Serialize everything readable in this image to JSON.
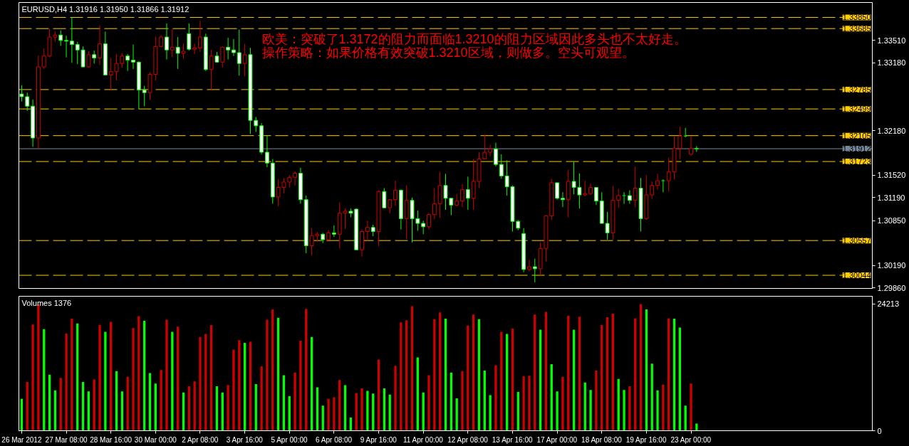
{
  "chart_data": [
    {
      "type": "candlestick",
      "title": "EURUSD,H4 1.31916 1.31950 1.31866 1.31912",
      "categories": [
        null,
        null,
        null,
        null,
        null,
        null,
        null,
        null,
        null,
        null,
        null,
        null,
        null,
        null,
        null,
        null,
        null,
        null,
        null,
        null,
        null,
        null,
        null,
        null,
        null,
        null,
        null,
        null,
        null,
        null,
        null,
        null,
        null,
        null,
        null,
        null,
        null,
        null,
        null,
        null,
        null,
        null,
        null,
        null,
        null,
        null,
        null,
        null,
        null,
        null,
        null,
        null,
        null,
        null,
        null,
        null,
        null,
        null,
        null,
        null,
        null,
        null,
        null,
        null,
        null,
        null,
        null,
        null,
        null,
        null,
        null,
        null,
        null,
        null,
        null,
        null,
        null,
        null,
        null,
        null,
        null,
        null,
        null,
        null,
        null,
        null,
        null,
        null,
        null,
        null,
        null,
        null,
        null,
        null,
        null,
        null,
        null,
        null,
        null,
        null,
        null,
        null,
        null,
        null,
        null,
        null,
        null,
        null,
        null,
        null,
        null,
        null,
        null,
        null,
        null,
        null,
        null,
        null,
        null,
        null,
        null,
        null,
        null,
        null,
        null,
        null,
        null,
        null,
        null,
        null,
        null,
        null,
        null,
        null,
        null,
        null,
        null,
        null,
        null,
        null,
        null,
        null,
        null,
        null,
        null,
        null,
        null,
        null,
        null,
        null,
        null,
        null,
        null
      ],
      "ohlc": [
        [
          1.3272,
          1.3285,
          1.3261,
          1.3268
        ],
        [
          1.3268,
          1.3274,
          1.3247,
          1.3254
        ],
        [
          1.3254,
          1.3264,
          1.3194,
          1.3207
        ],
        [
          1.3207,
          1.3329,
          1.3191,
          1.3312
        ],
        [
          1.3312,
          1.3339,
          1.3309,
          1.3328
        ],
        [
          1.3328,
          1.3368,
          1.3326,
          1.3356
        ],
        [
          1.3356,
          1.3364,
          1.3349,
          1.3359
        ],
        [
          1.3359,
          1.3366,
          1.3343,
          1.3351
        ],
        [
          1.3351,
          1.3358,
          1.3326,
          1.335
        ],
        [
          1.335,
          1.3385,
          1.3318,
          1.3345
        ],
        [
          1.3345,
          1.3349,
          1.3316,
          1.3337
        ],
        [
          1.3337,
          1.3342,
          1.3311,
          1.3312
        ],
        [
          1.3312,
          1.3335,
          1.3311,
          1.333
        ],
        [
          1.333,
          1.3336,
          1.3317,
          1.3325
        ],
        [
          1.3325,
          1.3373,
          1.3315,
          1.3346
        ],
        [
          1.3346,
          1.3364,
          1.3299,
          1.33
        ],
        [
          1.33,
          1.3325,
          1.3277,
          1.3305
        ],
        [
          1.3305,
          1.3331,
          1.3292,
          1.3317
        ],
        [
          1.3317,
          1.3332,
          1.3311,
          1.3328
        ],
        [
          1.3328,
          1.3331,
          1.3306,
          1.3322
        ],
        [
          1.3322,
          1.3345,
          1.3309,
          1.3319
        ],
        [
          1.3319,
          1.332,
          1.325,
          1.3278
        ],
        [
          1.3278,
          1.3284,
          1.3254,
          1.3274
        ],
        [
          1.3274,
          1.3304,
          1.3263,
          1.3301
        ],
        [
          1.3301,
          1.3357,
          1.3292,
          1.3342
        ],
        [
          1.3342,
          1.3359,
          1.3341,
          1.3356
        ],
        [
          1.3356,
          1.3376,
          1.3323,
          1.3337
        ],
        [
          1.3337,
          1.3368,
          1.3326,
          1.3341
        ],
        [
          1.3341,
          1.3356,
          1.3309,
          1.3332
        ],
        [
          1.3332,
          1.3346,
          1.3324,
          1.3335
        ],
        [
          1.3361,
          1.3376,
          1.3336,
          1.3338
        ],
        [
          1.3338,
          1.3346,
          1.3331,
          1.334
        ],
        [
          1.334,
          1.338,
          1.3334,
          1.3356
        ],
        [
          1.3356,
          1.3361,
          1.3306,
          1.3308
        ],
        [
          1.3308,
          1.3337,
          1.3278,
          1.3328
        ],
        [
          1.3328,
          1.3334,
          1.3318,
          1.3319
        ],
        [
          1.3319,
          1.3342,
          1.3311,
          1.3341
        ],
        [
          1.3341,
          1.3355,
          1.3323,
          1.3337
        ],
        [
          1.3337,
          1.3353,
          1.3328,
          1.3333
        ],
        [
          1.3333,
          1.3367,
          1.3299,
          1.3317
        ],
        [
          1.3317,
          1.3346,
          1.3298,
          1.333
        ],
        [
          1.333,
          1.334,
          1.3213,
          1.3233
        ],
        [
          1.3233,
          1.3238,
          1.3216,
          1.3225
        ],
        [
          1.3225,
          1.3229,
          1.3183,
          1.3186
        ],
        [
          1.3186,
          1.3211,
          1.3164,
          1.317
        ],
        [
          1.317,
          1.3176,
          1.311,
          1.312
        ],
        [
          1.312,
          1.3146,
          1.3106,
          1.3134
        ],
        [
          1.3134,
          1.3148,
          1.3126,
          1.3142
        ],
        [
          1.3142,
          1.3152,
          1.3134,
          1.3149
        ],
        [
          1.3149,
          1.3158,
          1.3137,
          1.3155
        ],
        [
          1.3155,
          1.3163,
          1.311,
          1.3116
        ],
        [
          1.3116,
          1.3122,
          1.3037,
          1.3048
        ],
        [
          1.3048,
          1.3074,
          1.3034,
          1.3063
        ],
        [
          1.3063,
          1.3068,
          1.3054,
          1.3065
        ],
        [
          1.3065,
          1.3067,
          1.3052,
          1.3057
        ],
        [
          1.3057,
          1.3071,
          1.3056,
          1.3067
        ],
        [
          1.3067,
          1.3078,
          1.3061,
          1.3065
        ],
        [
          1.3065,
          1.3112,
          1.3044,
          1.3096
        ],
        [
          1.3096,
          1.3103,
          1.3073,
          1.3099
        ],
        [
          1.3099,
          1.3103,
          1.309,
          1.3096
        ],
        [
          1.3102,
          1.3103,
          1.3042,
          1.3042
        ],
        [
          1.3042,
          1.3072,
          1.3032,
          1.3069
        ],
        [
          1.3069,
          1.3085,
          1.3055,
          1.3075
        ],
        [
          1.3075,
          1.3079,
          1.3062,
          1.3069
        ],
        [
          1.3069,
          1.313,
          1.3048,
          1.3128
        ],
        [
          1.3128,
          1.3133,
          1.3104,
          1.3104
        ],
        [
          1.3104,
          1.3117,
          1.3096,
          1.3116
        ],
        [
          1.3116,
          1.3144,
          1.3107,
          1.313
        ],
        [
          1.313,
          1.3131,
          1.3072,
          1.3088
        ],
        [
          1.3088,
          1.3137,
          1.3058,
          1.3115
        ],
        [
          1.3115,
          1.3119,
          1.3053,
          1.3088
        ],
        [
          1.3088,
          1.31,
          1.307,
          1.3081
        ],
        [
          1.3081,
          1.3085,
          1.3065,
          1.3076
        ],
        [
          1.3076,
          1.3096,
          1.3072,
          1.3094
        ],
        [
          1.3094,
          1.3133,
          1.3087,
          1.311
        ],
        [
          1.311,
          1.3157,
          1.3089,
          1.3137
        ],
        [
          1.3137,
          1.3154,
          1.3101,
          1.3118
        ],
        [
          1.3118,
          1.3118,
          1.3093,
          1.3108
        ],
        [
          1.3108,
          1.3124,
          1.3106,
          1.3114
        ],
        [
          1.3114,
          1.3139,
          1.3105,
          1.3131
        ],
        [
          1.3131,
          1.315,
          1.3101,
          1.3118
        ],
        [
          1.3118,
          1.3176,
          1.3101,
          1.3143
        ],
        [
          1.3143,
          1.3186,
          1.3133,
          1.3176
        ],
        [
          1.3176,
          1.3212,
          1.3176,
          1.3186
        ],
        [
          1.3186,
          1.3197,
          1.318,
          1.3191
        ],
        [
          1.3191,
          1.32,
          1.3165,
          1.3168
        ],
        [
          1.3168,
          1.3183,
          1.3147,
          1.3151
        ],
        [
          1.3151,
          1.3174,
          1.3122,
          1.3135
        ],
        [
          1.3135,
          1.3137,
          1.3069,
          1.3084
        ],
        [
          1.3084,
          1.3086,
          1.3071,
          1.3074
        ],
        [
          1.3066,
          1.3074,
          1.3009,
          1.3013
        ],
        [
          1.3013,
          1.3027,
          1.301,
          1.3017
        ],
        [
          1.3017,
          1.3029,
          1.2994,
          1.3014
        ],
        [
          1.3014,
          1.3053,
          1.3004,
          1.3044
        ],
        [
          1.3044,
          1.3092,
          1.3025,
          1.3092
        ],
        [
          1.3092,
          1.3147,
          1.3086,
          1.3141
        ],
        [
          1.3141,
          1.3141,
          1.3116,
          1.3118
        ],
        [
          1.3118,
          1.3127,
          1.3105,
          1.3116
        ],
        [
          1.3116,
          1.316,
          1.309,
          1.3143
        ],
        [
          1.3143,
          1.3172,
          1.3124,
          1.3134
        ],
        [
          1.3134,
          1.3155,
          1.3103,
          1.3123
        ],
        [
          1.3123,
          1.3144,
          1.3121,
          1.3125
        ],
        [
          1.3125,
          1.314,
          1.3123,
          1.3134
        ],
        [
          1.3134,
          1.3134,
          1.3108,
          1.3114
        ],
        [
          1.3114,
          1.3127,
          1.3081,
          1.3081
        ],
        [
          1.3081,
          1.3098,
          1.3057,
          1.3067
        ],
        [
          1.3067,
          1.3136,
          1.3057,
          1.3115
        ],
        [
          1.3115,
          1.3132,
          1.3104,
          1.3122
        ],
        [
          1.3122,
          1.3127,
          1.311,
          1.3122
        ],
        [
          1.3122,
          1.313,
          1.311,
          1.3115
        ],
        [
          1.3115,
          1.3165,
          1.3105,
          1.3133
        ],
        [
          1.3133,
          1.3148,
          1.3069,
          1.3088
        ],
        [
          1.3088,
          1.3152,
          1.3086,
          1.3123
        ],
        [
          1.3123,
          1.3143,
          1.3117,
          1.3137
        ],
        [
          1.3137,
          1.3154,
          1.3131,
          1.3144
        ],
        [
          1.3144,
          1.3146,
          1.3127,
          1.3144
        ],
        [
          1.3144,
          1.3178,
          1.3128,
          1.3157
        ],
        [
          1.3157,
          1.3209,
          1.3146,
          1.3192
        ],
        [
          1.3192,
          1.3224,
          1.3176,
          1.321
        ],
        [
          1.321,
          1.3222,
          1.3208,
          1.321
        ],
        [
          1.3183,
          1.321,
          1.3181,
          1.3192
        ],
        [
          1.31916,
          1.3195,
          1.31866,
          1.31912
        ],
        null,
        null,
        null,
        null,
        null,
        null,
        null,
        null,
        null,
        null,
        null,
        null,
        null,
        null,
        null,
        null,
        null,
        null,
        null,
        null,
        null,
        null,
        null,
        null,
        null,
        null,
        null,
        null,
        null,
        null,
        null
      ],
      "colors": [
        "#00ff00",
        "#00ff00",
        "#00ff00",
        "#d00000",
        "#d00000",
        "#d00000",
        "#d00000",
        "#00ff00",
        "#00ff00",
        "#00ff00",
        "#00ff00",
        "#00ff00",
        "#d00000",
        "#00ff00",
        "#d00000",
        "#00ff00",
        "#d00000",
        "#d00000",
        "#d00000",
        "#00ff00",
        "#00ff00",
        "#00ff00",
        "#00ff00",
        "#d00000",
        "#d00000",
        "#d00000",
        "#00ff00",
        "#d00000",
        "#00ff00",
        "#d00000",
        "#00ff00",
        "#d00000",
        "#d00000",
        "#00ff00",
        "#d00000",
        "#00ff00",
        "#d00000",
        "#00ff00",
        "#00ff00",
        "#00ff00",
        "#d00000",
        "#00ff00",
        "#00ff00",
        "#00ff00",
        "#00ff00",
        "#00ff00",
        "#d00000",
        "#d00000",
        "#d00000",
        "#d00000",
        "#00ff00",
        "#00ff00",
        "#d00000",
        "#d00000",
        "#00ff00",
        "#d00000",
        "#00ff00",
        "#d00000",
        "#d00000",
        "#00ff00",
        "#00ff00",
        "#d00000",
        "#d00000",
        "#00ff00",
        "#d00000",
        "#00ff00",
        "#d00000",
        "#d00000",
        "#00ff00",
        "#d00000",
        "#00ff00",
        "#00ff00",
        "#00ff00",
        "#d00000",
        "#d00000",
        "#d00000",
        "#00ff00",
        "#00ff00",
        "#d00000",
        "#d00000",
        "#00ff00",
        "#d00000",
        "#d00000",
        "#d00000",
        "#d00000",
        "#00ff00",
        "#00ff00",
        "#00ff00",
        "#00ff00",
        "#00ff00",
        "#00ff00",
        "#d00000",
        "#00ff00",
        "#d00000",
        "#d00000",
        "#d00000",
        "#00ff00",
        "#00ff00",
        "#d00000",
        "#00ff00",
        "#00ff00",
        "#d00000",
        "#d00000",
        "#00ff00",
        "#00ff00",
        "#00ff00",
        "#d00000",
        "#d00000",
        "#00ff00",
        "#00ff00",
        "#d00000",
        "#00ff00",
        "#d00000",
        "#d00000",
        "#d00000",
        "#00ff00",
        "#d00000",
        "#d00000",
        "#d00000",
        "#00ff00",
        "#d00000",
        "#00ff00",
        null,
        null,
        null,
        null,
        null,
        null,
        null,
        null,
        null,
        null,
        null,
        null,
        null,
        null,
        null,
        null,
        null,
        null,
        null,
        null,
        null,
        null,
        null,
        null,
        null,
        null,
        null,
        null,
        null,
        null,
        null
      ],
      "ylim": [
        1.2985,
        1.3407
      ],
      "yticks": [
        {
          "value": 1.3351,
          "label": "1.33510"
        },
        {
          "value": 1.3318,
          "label": "1.33180"
        },
        {
          "value": 1.3218,
          "label": "1.32180"
        },
        {
          "value": 1.3152,
          "label": "1.31520"
        },
        {
          "value": 1.3119,
          "label": "1.31190"
        },
        {
          "value": 1.3085,
          "label": "1.30850"
        },
        {
          "value": 1.3019,
          "label": "1.30190"
        },
        {
          "value": 1.2986,
          "label": "1.29860"
        }
      ],
      "tick_labels": "y",
      "ref_lines": [
        {
          "axis": "y",
          "value": 1.3385,
          "label": "1.33850",
          "color": "#ffcc00",
          "line_style": "dashed"
        },
        {
          "axis": "y",
          "value": 1.33685,
          "label": "1.33685",
          "color": "#ffcc00",
          "line_style": "dashed"
        },
        {
          "axis": "y",
          "value": 1.32785,
          "label": "1.32785",
          "color": "#ffcc00",
          "line_style": "dashed"
        },
        {
          "axis": "y",
          "value": 1.32499,
          "label": "1.32499",
          "color": "#ffcc00",
          "line_style": "dashed"
        },
        {
          "axis": "y",
          "value": 1.32105,
          "label": "1.32105",
          "color": "#ffcc00",
          "line_style": "dashed"
        },
        {
          "axis": "y",
          "value": 1.31912,
          "label": "1.31912",
          "color": "#778899",
          "line_style": "solid"
        },
        {
          "axis": "y",
          "value": 1.31723,
          "label": "1.31723",
          "color": "#ffcc00",
          "line_style": "dashed"
        },
        {
          "axis": "y",
          "value": 1.30557,
          "label": "1.30557",
          "color": "#ffcc00",
          "line_style": "dashed"
        },
        {
          "axis": "y",
          "value": 1.30044,
          "label": "1.30044",
          "color": "#ffcc00",
          "line_style": "dashed"
        }
      ],
      "annotations": [
        "欧美：突破了1.3172的阻力而面临1.3210的阻力区域因此多头也不太好走。",
        "操作策略：如果价格有效突破1.3210区域，则做多。空头可观望。"
      ]
    },
    {
      "type": "bar",
      "title": "Volumes 1376",
      "categories": [
        "26 Mar 2012",
        null,
        null,
        null,
        null,
        null,
        null,
        null,
        "27 Mar 08:00",
        null,
        null,
        null,
        null,
        null,
        null,
        null,
        "28 Mar 16:00",
        null,
        null,
        null,
        null,
        null,
        null,
        null,
        "30 Mar 00:00",
        null,
        null,
        null,
        null,
        null,
        null,
        null,
        "2 Apr 08:00",
        null,
        null,
        null,
        null,
        null,
        null,
        null,
        "3 Apr 16:00",
        null,
        null,
        null,
        null,
        null,
        null,
        null,
        "5 Apr 00:00",
        null,
        null,
        null,
        null,
        null,
        null,
        null,
        "6 Apr 08:00",
        null,
        null,
        null,
        null,
        null,
        null,
        null,
        "9 Apr 16:00",
        null,
        null,
        null,
        null,
        null,
        null,
        null,
        "11 Apr 00:00",
        null,
        null,
        null,
        null,
        null,
        null,
        null,
        "12 Apr 08:00",
        null,
        null,
        null,
        null,
        null,
        null,
        null,
        "13 Apr 16:00",
        null,
        null,
        null,
        null,
        null,
        null,
        null,
        "17 Apr 00:00",
        null,
        null,
        null,
        null,
        null,
        null,
        null,
        "18 Apr 08:00",
        null,
        null,
        null,
        null,
        null,
        null,
        null,
        "19 Apr 16:00",
        null,
        null,
        null,
        null,
        null,
        null,
        null,
        "23 Apr 00:00",
        null,
        null,
        null,
        null,
        null,
        null,
        null,
        null,
        null,
        null,
        null,
        null,
        null,
        null,
        null,
        null,
        null,
        null,
        null,
        null,
        null,
        null,
        null,
        null,
        null,
        null,
        null,
        null,
        null,
        null,
        null,
        null
      ],
      "values": [
        6100,
        9300,
        20300,
        24100,
        19400,
        10700,
        7700,
        10100,
        18600,
        21400,
        20500,
        9300,
        7500,
        9800,
        20200,
        18900,
        20800,
        11400,
        7500,
        10300,
        19600,
        21900,
        21000,
        11000,
        9000,
        11600,
        21200,
        18900,
        19900,
        7300,
        8500,
        9400,
        17900,
        18500,
        20200,
        8500,
        7300,
        8700,
        15500,
        17300,
        16800,
        17000,
        8900,
        12300,
        21200,
        23200,
        21600,
        10600,
        6600,
        11100,
        17200,
        23300,
        17900,
        8300,
        4800,
        6100,
        6400,
        9700,
        8700,
        2500,
        7200,
        8100,
        7600,
        7100,
        13600,
        8100,
        6900,
        12400,
        20700,
        21100,
        23800,
        14000,
        7300,
        10600,
        21300,
        22600,
        21400,
        11100,
        6200,
        11400,
        20100,
        22200,
        21300,
        11500,
        6800,
        12500,
        18900,
        18500,
        19500,
        7400,
        10400,
        10500,
        22200,
        19300,
        22700,
        12700,
        7500,
        10300,
        22000,
        19300,
        21800,
        9200,
        7800,
        11500,
        20200,
        21700,
        22400,
        9900,
        7800,
        8500,
        21500,
        24213,
        23200,
        12800,
        7700,
        8800,
        21500,
        21400,
        19700,
        4800,
        9000,
        1376,
        null,
        null,
        null,
        null,
        null,
        null,
        null,
        null,
        null,
        null,
        null,
        null,
        null,
        null,
        null,
        null,
        null,
        null,
        null,
        null,
        null,
        null,
        null,
        null,
        null,
        null,
        null,
        null,
        null,
        null,
        null
      ],
      "colors": [
        "#00ff00",
        "#d00000",
        "#d00000",
        "#d00000",
        "#00ff00",
        "#00ff00",
        "#00ff00",
        "#d00000",
        "#d00000",
        "#d00000",
        "#00ff00",
        "#00ff00",
        "#00ff00",
        "#d00000",
        "#d00000",
        "#00ff00",
        "#d00000",
        "#00ff00",
        "#00ff00",
        "#d00000",
        "#d00000",
        "#d00000",
        "#00ff00",
        "#00ff00",
        "#00ff00",
        "#d00000",
        "#d00000",
        "#00ff00",
        "#d00000",
        "#00ff00",
        "#d00000",
        "#d00000",
        "#d00000",
        "#d00000",
        "#d00000",
        "#00ff00",
        "#00ff00",
        "#d00000",
        "#d00000",
        "#d00000",
        "#00ff00",
        "#d00000",
        "#00ff00",
        "#d00000",
        "#d00000",
        "#d00000",
        "#00ff00",
        "#00ff00",
        "#00ff00",
        "#d00000",
        "#d00000",
        "#d00000",
        "#00ff00",
        "#00ff00",
        "#00ff00",
        "#d00000",
        "#d00000",
        "#d00000",
        "#00ff00",
        "#00ff00",
        "#d00000",
        "#d00000",
        "#00ff00",
        "#00ff00",
        "#d00000",
        "#00ff00",
        "#00ff00",
        "#d00000",
        "#d00000",
        "#d00000",
        "#d00000",
        "#00ff00",
        "#00ff00",
        "#d00000",
        "#d00000",
        "#d00000",
        "#00ff00",
        "#00ff00",
        "#00ff00",
        "#d00000",
        "#d00000",
        "#d00000",
        "#00ff00",
        "#00ff00",
        "#00ff00",
        "#d00000",
        "#d00000",
        "#00ff00",
        "#d00000",
        "#00ff00",
        "#d00000",
        "#d00000",
        "#d00000",
        "#00ff00",
        "#d00000",
        "#00ff00",
        "#00ff00",
        "#d00000",
        "#d00000",
        "#00ff00",
        "#d00000",
        "#00ff00",
        "#00ff00",
        "#d00000",
        "#d00000",
        "#d00000",
        "#d00000",
        "#00ff00",
        "#00ff00",
        "#d00000",
        "#d00000",
        "#d00000",
        "#00ff00",
        "#00ff00",
        "#00ff00",
        "#d00000",
        "#d00000",
        "#00ff00",
        "#00ff00",
        "#00ff00",
        "#d00000",
        "#00ff00",
        null,
        null,
        null,
        null,
        null,
        null,
        null,
        null,
        null,
        null,
        null,
        null,
        null,
        null,
        null,
        null,
        null,
        null,
        null,
        null,
        null,
        null,
        null,
        null,
        null,
        null,
        null,
        null,
        null,
        null,
        null
      ],
      "ylim": [
        0,
        25700
      ],
      "yticks": [
        0,
        24213
      ]
    }
  ]
}
